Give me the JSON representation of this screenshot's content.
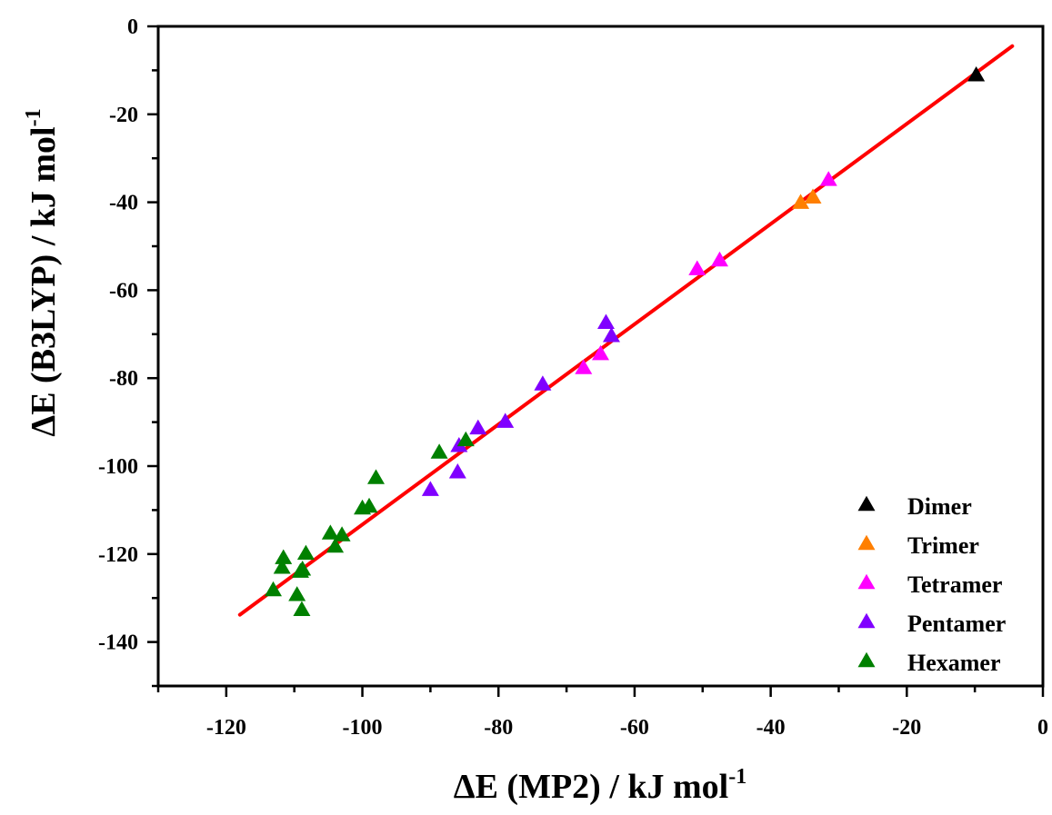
{
  "chart_data": {
    "type": "scatter",
    "xlabel": {
      "main": "ΔE (MP2) / kJ mol",
      "sup": "-1"
    },
    "ylabel": {
      "main": "ΔE (B3LYP) / kJ mol",
      "sup": "-1"
    },
    "xlim": [
      -130,
      0
    ],
    "ylim": [
      -150,
      0
    ],
    "xticks": [
      -120,
      -100,
      -80,
      -60,
      -40,
      -20,
      0
    ],
    "yticks": [
      0,
      -20,
      -40,
      -60,
      -80,
      -100,
      -120,
      -140
    ],
    "grid": false,
    "legend_position": "bottom-right",
    "marker": "triangle",
    "series": [
      {
        "name": "Dimer",
        "color": "#000000",
        "points": [
          [
            -9.8,
            -11.2
          ]
        ]
      },
      {
        "name": "Trimer",
        "color": "#ff7f00",
        "points": [
          [
            -35.6,
            -40.2
          ],
          [
            -33.8,
            -39.0
          ]
        ]
      },
      {
        "name": "Tetramer",
        "color": "#ff00ff",
        "points": [
          [
            -31.5,
            -35.0
          ],
          [
            -50.8,
            -55.3
          ],
          [
            -47.5,
            -53.3
          ],
          [
            -67.5,
            -77.8
          ],
          [
            -65.0,
            -74.6
          ]
        ]
      },
      {
        "name": "Pentamer",
        "color": "#8000ff",
        "points": [
          [
            -64.2,
            -67.5
          ],
          [
            -63.4,
            -70.5
          ],
          [
            -73.5,
            -81.5
          ],
          [
            -83.0,
            -91.5
          ],
          [
            -79.0,
            -90.0
          ],
          [
            -85.8,
            -95.5
          ],
          [
            -86.0,
            -101.5
          ],
          [
            -90.0,
            -105.5
          ]
        ]
      },
      {
        "name": "Hexamer",
        "color": "#008000",
        "points": [
          [
            -84.8,
            -94.2
          ],
          [
            -88.7,
            -97.0
          ],
          [
            -98.0,
            -102.8
          ],
          [
            -99.0,
            -109.3
          ],
          [
            -100.0,
            -109.7
          ],
          [
            -104.7,
            -115.4
          ],
          [
            -103.0,
            -115.8
          ],
          [
            -104.0,
            -118.4
          ],
          [
            -108.3,
            -120.0
          ],
          [
            -108.8,
            -123.6
          ],
          [
            -111.6,
            -121.0
          ],
          [
            -111.8,
            -123.2
          ],
          [
            -109.1,
            -124.1
          ],
          [
            -113.1,
            -128.3
          ],
          [
            -109.6,
            -129.4
          ],
          [
            -108.9,
            -132.8
          ]
        ]
      }
    ],
    "fit_line": {
      "color": "#ff0000",
      "x": [
        -118.0,
        -4.5
      ],
      "y": [
        -133.8,
        -4.5
      ]
    }
  }
}
